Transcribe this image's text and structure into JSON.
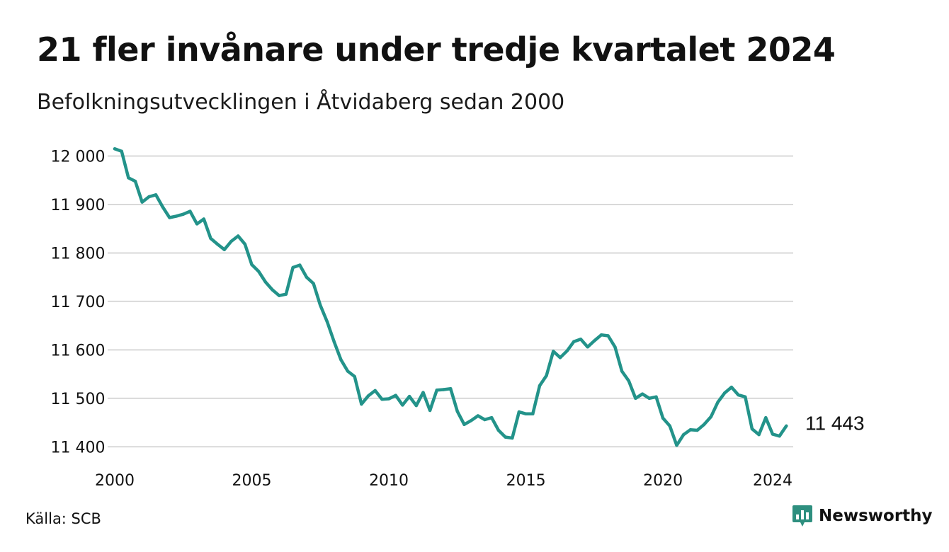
{
  "header": {
    "title": "21 fler invånare under tredje kvartalet 2024",
    "subtitle": "Befolkningsutvecklingen i Åtvidaberg sedan 2000"
  },
  "footer": {
    "source": "Källa: SCB",
    "brand": "Newsworthy"
  },
  "colors": {
    "line": "#23938a",
    "grid": "#d9d9d9",
    "brand": "#2e8f7f",
    "text": "#111111"
  },
  "chart_data": {
    "type": "line",
    "title": "21 fler invånare under tredje kvartalet 2024",
    "subtitle": "Befolkningsutvecklingen i Åtvidaberg sedan 2000",
    "xlabel": "",
    "ylabel": "",
    "xlim": [
      2000,
      2024.75
    ],
    "ylim": [
      11380,
      12030
    ],
    "xticks": [
      2000,
      2005,
      2010,
      2015,
      2020,
      2024
    ],
    "xtick_labels": [
      "2000",
      "2005",
      "2010",
      "2015",
      "2020",
      "2024"
    ],
    "yticks": [
      11400,
      11500,
      11600,
      11700,
      11800,
      11900,
      12000
    ],
    "ytick_labels": [
      "11 400",
      "11 500",
      "11 600",
      "11 700",
      "11 800",
      "11 900",
      "12 000"
    ],
    "grid": "horizontal",
    "legend": "none",
    "end_label": "11 443",
    "series": [
      {
        "x": [
          "2000Q1",
          "2000Q2",
          "2000Q3",
          "2000Q4",
          "2001Q1",
          "2001Q2",
          "2001Q3",
          "2001Q4",
          "2002Q1",
          "2002Q2",
          "2002Q3",
          "2002Q4",
          "2003Q1",
          "2003Q2",
          "2003Q3",
          "2003Q4",
          "2004Q1",
          "2004Q2",
          "2004Q3",
          "2004Q4",
          "2005Q1",
          "2005Q2",
          "2005Q3",
          "2005Q4",
          "2006Q1",
          "2006Q2",
          "2006Q3",
          "2006Q4",
          "2007Q1",
          "2007Q2",
          "2007Q3",
          "2007Q4",
          "2008Q1",
          "2008Q2",
          "2008Q3",
          "2008Q4",
          "2009Q1",
          "2009Q2",
          "2009Q3",
          "2009Q4",
          "2010Q1",
          "2010Q2",
          "2010Q3",
          "2010Q4",
          "2011Q1",
          "2011Q2",
          "2011Q3",
          "2011Q4",
          "2012Q1",
          "2012Q2",
          "2012Q3",
          "2012Q4",
          "2013Q1",
          "2013Q2",
          "2013Q3",
          "2013Q4",
          "2014Q1",
          "2014Q2",
          "2014Q3",
          "2014Q4",
          "2015Q1",
          "2015Q2",
          "2015Q3",
          "2015Q4",
          "2016Q1",
          "2016Q2",
          "2016Q3",
          "2016Q4",
          "2017Q1",
          "2017Q2",
          "2017Q3",
          "2017Q4",
          "2018Q1",
          "2018Q2",
          "2018Q3",
          "2018Q4",
          "2019Q1",
          "2019Q2",
          "2019Q3",
          "2019Q4",
          "2020Q1",
          "2020Q2",
          "2020Q3",
          "2020Q4",
          "2021Q1",
          "2021Q2",
          "2021Q3",
          "2021Q4",
          "2022Q1",
          "2022Q2",
          "2022Q3",
          "2022Q4",
          "2023Q1",
          "2023Q2",
          "2023Q3",
          "2023Q4",
          "2024Q1",
          "2024Q2",
          "2024Q3"
        ],
        "values": [
          12015,
          12010,
          11955,
          11948,
          11905,
          11916,
          11920,
          11895,
          11873,
          11876,
          11880,
          11886,
          11860,
          11870,
          11830,
          11818,
          11807,
          11824,
          11835,
          11818,
          11776,
          11762,
          11740,
          11724,
          11712,
          11715,
          11770,
          11775,
          11750,
          11737,
          11692,
          11658,
          11617,
          11580,
          11556,
          11545,
          11488,
          11505,
          11516,
          11498,
          11499,
          11506,
          11486,
          11504,
          11485,
          11512,
          11475,
          11517,
          11518,
          11520,
          11473,
          11446,
          11454,
          11464,
          11456,
          11460,
          11434,
          11420,
          11418,
          11472,
          11468,
          11468,
          11526,
          11547,
          11597,
          11584,
          11598,
          11617,
          11622,
          11606,
          11619,
          11631,
          11629,
          11606,
          11556,
          11536,
          11500,
          11509,
          11500,
          11503,
          11459,
          11443,
          11403,
          11425,
          11435,
          11434,
          11446,
          11462,
          11492,
          11511,
          11523,
          11507,
          11503,
          11437,
          11425,
          11460,
          11426,
          11422,
          11443
        ]
      }
    ]
  }
}
